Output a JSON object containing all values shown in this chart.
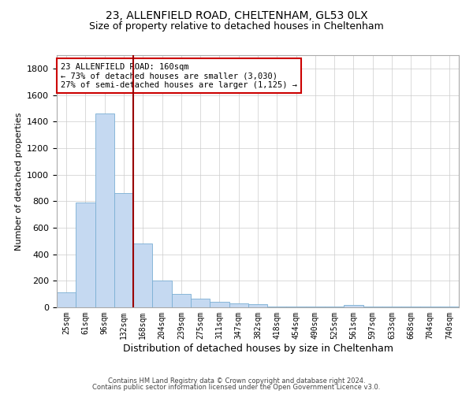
{
  "title1": "23, ALLENFIELD ROAD, CHELTENHAM, GL53 0LX",
  "title2": "Size of property relative to detached houses in Cheltenham",
  "xlabel": "Distribution of detached houses by size in Cheltenham",
  "ylabel": "Number of detached properties",
  "categories": [
    "25sqm",
    "61sqm",
    "96sqm",
    "132sqm",
    "168sqm",
    "204sqm",
    "239sqm",
    "275sqm",
    "311sqm",
    "347sqm",
    "382sqm",
    "418sqm",
    "454sqm",
    "490sqm",
    "525sqm",
    "561sqm",
    "597sqm",
    "633sqm",
    "668sqm",
    "704sqm",
    "740sqm"
  ],
  "values": [
    110,
    790,
    1460,
    860,
    480,
    200,
    100,
    65,
    40,
    30,
    25,
    5,
    5,
    5,
    5,
    15,
    5,
    5,
    5,
    5,
    5
  ],
  "bar_color": "#c5d9f1",
  "bar_edge_color": "#7bafd4",
  "vline_color": "#990000",
  "vline_x_index": 4,
  "ylim": [
    0,
    1900
  ],
  "annotation_text": "23 ALLENFIELD ROAD: 160sqm\n← 73% of detached houses are smaller (3,030)\n27% of semi-detached houses are larger (1,125) →",
  "annotation_box_color": "#ffffff",
  "annotation_box_edge": "#cc0000",
  "footer1": "Contains HM Land Registry data © Crown copyright and database right 2024.",
  "footer2": "Contains public sector information licensed under the Open Government Licence v3.0.",
  "title_fontsize": 10,
  "subtitle_fontsize": 9,
  "tick_fontsize": 7,
  "ylabel_fontsize": 8,
  "xlabel_fontsize": 9,
  "annotation_fontsize": 7.5
}
